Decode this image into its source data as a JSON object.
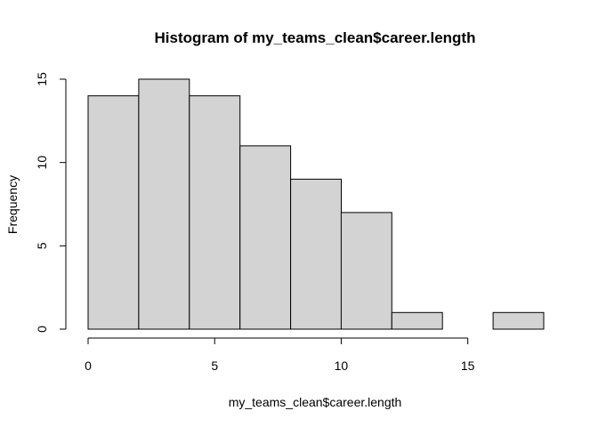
{
  "chart_data": {
    "type": "bar",
    "title": "Histogram of my_teams_clean$career.length",
    "xlabel": "my_teams_clean$career.length",
    "ylabel": "Frequency",
    "bins": [
      {
        "start": 0,
        "end": 2,
        "count": 14
      },
      {
        "start": 2,
        "end": 4,
        "count": 15
      },
      {
        "start": 4,
        "end": 6,
        "count": 14
      },
      {
        "start": 6,
        "end": 8,
        "count": 11
      },
      {
        "start": 8,
        "end": 10,
        "count": 9
      },
      {
        "start": 10,
        "end": 12,
        "count": 7
      },
      {
        "start": 12,
        "end": 14,
        "count": 1
      },
      {
        "start": 14,
        "end": 16,
        "count": 0
      },
      {
        "start": 16,
        "end": 18,
        "count": 1
      }
    ],
    "xlim": [
      0,
      18
    ],
    "ylim": [
      0,
      15
    ],
    "xticks": [
      0,
      5,
      10,
      15
    ],
    "yticks": [
      0,
      5,
      10,
      15
    ],
    "grid": false,
    "colors": {
      "bar_fill": "#d3d3d3",
      "bar_stroke": "#000000"
    }
  }
}
